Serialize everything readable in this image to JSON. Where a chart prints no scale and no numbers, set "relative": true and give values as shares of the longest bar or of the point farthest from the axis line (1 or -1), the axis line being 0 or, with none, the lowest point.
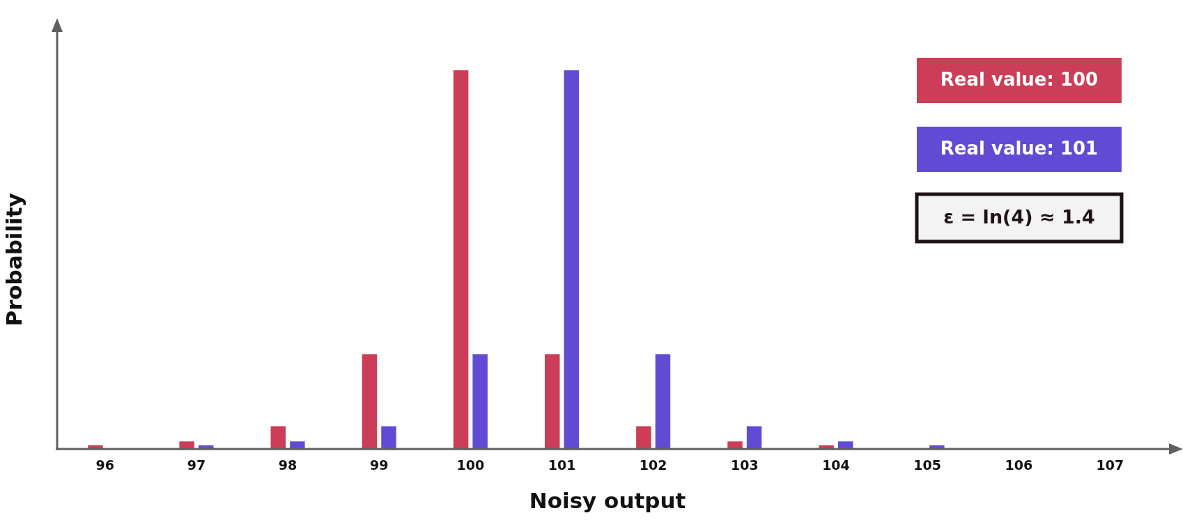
{
  "chart_data": {
    "type": "bar",
    "relative": true,
    "xlabel": "Noisy output",
    "ylabel": "Probability",
    "categories": [
      "96",
      "97",
      "98",
      "99",
      "100",
      "101",
      "102",
      "103",
      "104",
      "105",
      "106",
      "107"
    ],
    "series": [
      {
        "name": "Real value: 100",
        "color": "#cc3d57",
        "values": [
          0.01,
          0.02,
          0.06,
          0.25,
          1,
          0.25,
          0.06,
          0.02,
          0.01,
          0,
          0,
          0
        ]
      },
      {
        "name": "Real value: 101",
        "color": "#624bd4",
        "values": [
          0,
          0.01,
          0.02,
          0.06,
          0.25,
          1,
          0.25,
          0.06,
          0.02,
          0.01,
          0,
          0
        ]
      }
    ],
    "legend": "top right",
    "grid": false,
    "annotations": [
      "ε = ln(4) ≈ 1.4"
    ]
  }
}
